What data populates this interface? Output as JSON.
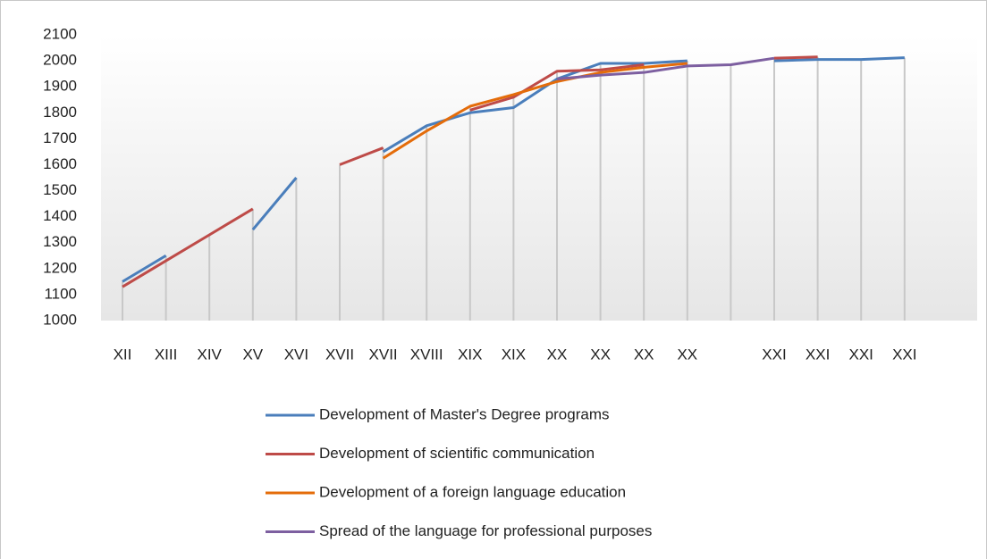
{
  "chart_data": {
    "type": "line",
    "categories": [
      "XII",
      "XIII",
      "XIV",
      "XV",
      "XVI",
      "XVII",
      "XVII",
      "XVIII",
      "XIX",
      "XIX",
      "XX",
      "XX",
      "XX",
      "XX",
      null,
      "XXI",
      "XXI",
      "XXI",
      "XXI"
    ],
    "series": [
      {
        "name": "Development of Master's Degree programs",
        "color": "#4a7ebb",
        "values": [
          1150,
          1250,
          null,
          1350,
          1550,
          null,
          1650,
          1750,
          1800,
          1820,
          1930,
          1990,
          1990,
          2000,
          null,
          2000,
          2005,
          2005,
          2012
        ]
      },
      {
        "name": "Development of scientific communication",
        "color": "#be4b48",
        "values": [
          1130,
          1230,
          1330,
          1430,
          null,
          1600,
          1665,
          null,
          1810,
          1860,
          1960,
          1965,
          1985,
          null,
          null,
          2010,
          2015,
          null,
          null
        ]
      },
      {
        "name": "Development of a foreign language education",
        "color": "#e46c0a",
        "values": [
          null,
          null,
          null,
          null,
          null,
          null,
          1625,
          1730,
          1825,
          1870,
          1920,
          1955,
          1975,
          1990,
          null,
          null,
          null,
          null,
          null
        ]
      },
      {
        "name": "Spread of the language for professional purposes",
        "color": "#7d5fa0",
        "values": [
          null,
          null,
          null,
          null,
          null,
          null,
          null,
          null,
          null,
          null,
          1930,
          1945,
          1955,
          1980,
          1985,
          2010,
          null,
          null,
          null
        ]
      }
    ],
    "ylim": [
      1000,
      2100
    ],
    "yticks": [
      1000,
      1100,
      1200,
      1300,
      1400,
      1500,
      1600,
      1700,
      1800,
      1900,
      2000,
      2100
    ],
    "drop_lines": true
  }
}
